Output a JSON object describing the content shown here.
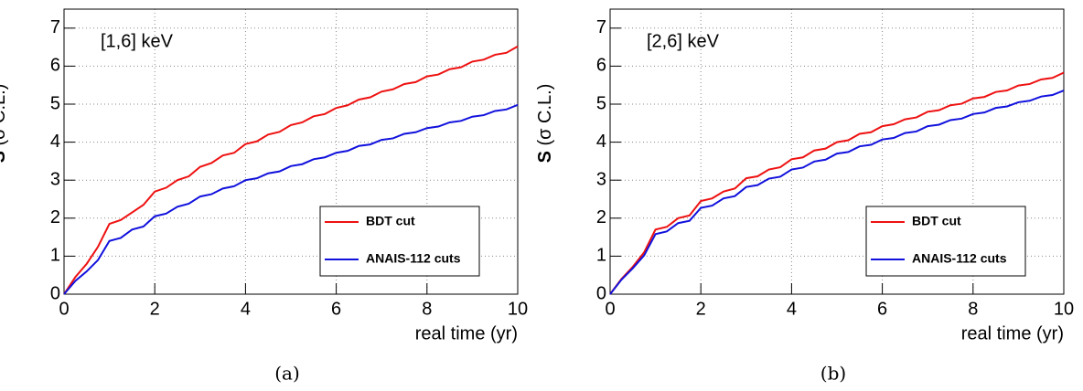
{
  "chart_data": [
    {
      "type": "line",
      "annotation": "[1,6] keV",
      "caption": "(a)",
      "ylabel_symbol": "S",
      "ylabel_unit": "(σ C.L.)",
      "xlabel": "real time (yr)",
      "xlim": [
        0,
        10
      ],
      "ylim": [
        0,
        7.5
      ],
      "xticks": [
        0,
        2,
        4,
        6,
        8,
        10
      ],
      "yticks": [
        0,
        1,
        2,
        3,
        4,
        5,
        6,
        7
      ],
      "grid": true,
      "legend": "lower right",
      "x": [
        0,
        0.25,
        0.5,
        0.75,
        1,
        1.25,
        1.5,
        1.75,
        2,
        2.25,
        2.5,
        2.75,
        3,
        3.25,
        3.5,
        3.75,
        4,
        4.25,
        4.5,
        4.75,
        5,
        5.25,
        5.5,
        5.75,
        6,
        6.25,
        6.5,
        6.75,
        7,
        7.25,
        7.5,
        7.75,
        8,
        8.25,
        8.5,
        8.75,
        9,
        9.25,
        9.5,
        9.75,
        10
      ],
      "series": [
        {
          "name": "BDT cut",
          "color": "#ee1111",
          "values": [
            0,
            0.45,
            0.8,
            1.25,
            1.85,
            1.95,
            2.15,
            2.35,
            2.7,
            2.8,
            3.0,
            3.1,
            3.35,
            3.45,
            3.65,
            3.72,
            3.95,
            4.02,
            4.2,
            4.27,
            4.45,
            4.52,
            4.68,
            4.74,
            4.9,
            4.97,
            5.12,
            5.18,
            5.33,
            5.39,
            5.53,
            5.58,
            5.73,
            5.78,
            5.92,
            5.97,
            6.12,
            6.17,
            6.3,
            6.35,
            6.52
          ]
        },
        {
          "name": "ANAIS-112 cuts",
          "color": "#1111dd",
          "values": [
            0,
            0.35,
            0.6,
            0.9,
            1.4,
            1.48,
            1.7,
            1.78,
            2.05,
            2.12,
            2.3,
            2.38,
            2.57,
            2.63,
            2.78,
            2.84,
            3.0,
            3.05,
            3.18,
            3.23,
            3.37,
            3.42,
            3.55,
            3.6,
            3.72,
            3.77,
            3.9,
            3.94,
            4.06,
            4.1,
            4.22,
            4.26,
            4.37,
            4.41,
            4.52,
            4.56,
            4.67,
            4.71,
            4.82,
            4.86,
            4.98
          ]
        }
      ]
    },
    {
      "type": "line",
      "annotation": "[2,6] keV",
      "caption": "(b)",
      "ylabel_symbol": "S",
      "ylabel_unit": "(σ C.L.)",
      "xlabel": "real time (yr)",
      "xlim": [
        0,
        10
      ],
      "ylim": [
        0,
        7.5
      ],
      "xticks": [
        0,
        2,
        4,
        6,
        8,
        10
      ],
      "yticks": [
        0,
        1,
        2,
        3,
        4,
        5,
        6,
        7
      ],
      "grid": true,
      "legend": "lower right",
      "x": [
        0,
        0.25,
        0.5,
        0.75,
        1,
        1.25,
        1.5,
        1.75,
        2,
        2.25,
        2.5,
        2.75,
        3,
        3.25,
        3.5,
        3.75,
        4,
        4.25,
        4.5,
        4.75,
        5,
        5.25,
        5.5,
        5.75,
        6,
        6.25,
        6.5,
        6.75,
        7,
        7.25,
        7.5,
        7.75,
        8,
        8.25,
        8.5,
        8.75,
        9,
        9.25,
        9.5,
        9.75,
        10
      ],
      "series": [
        {
          "name": "BDT cut",
          "color": "#ee1111",
          "values": [
            0,
            0.4,
            0.72,
            1.1,
            1.7,
            1.77,
            2.0,
            2.07,
            2.45,
            2.52,
            2.7,
            2.78,
            3.05,
            3.1,
            3.28,
            3.34,
            3.55,
            3.6,
            3.78,
            3.83,
            4.0,
            4.05,
            4.22,
            4.26,
            4.42,
            4.47,
            4.6,
            4.65,
            4.8,
            4.84,
            4.97,
            5.01,
            5.15,
            5.19,
            5.32,
            5.36,
            5.49,
            5.53,
            5.65,
            5.69,
            5.83
          ]
        },
        {
          "name": "ANAIS-112 cuts",
          "color": "#1111dd",
          "values": [
            0,
            0.38,
            0.68,
            1.02,
            1.58,
            1.65,
            1.87,
            1.93,
            2.27,
            2.33,
            2.52,
            2.58,
            2.82,
            2.87,
            3.04,
            3.09,
            3.28,
            3.33,
            3.49,
            3.54,
            3.7,
            3.74,
            3.89,
            3.93,
            4.07,
            4.11,
            4.24,
            4.28,
            4.42,
            4.46,
            4.58,
            4.62,
            4.74,
            4.78,
            4.9,
            4.94,
            5.05,
            5.09,
            5.2,
            5.24,
            5.36
          ]
        }
      ]
    }
  ]
}
